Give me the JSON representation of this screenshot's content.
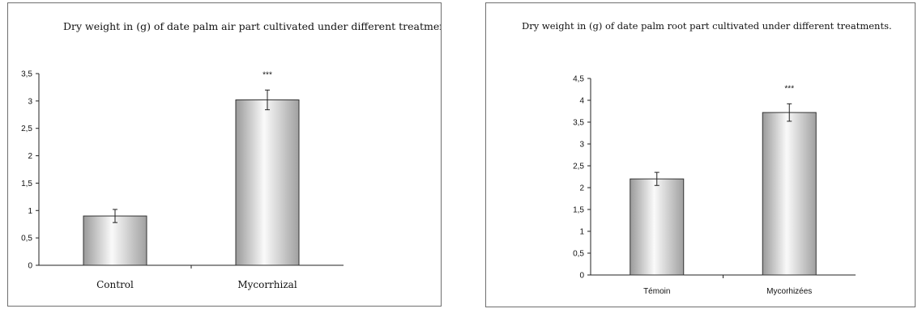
{
  "chart_data": [
    {
      "type": "bar",
      "title": "Dry weight in (g)  of date palm air part  cultivated under different treatments.",
      "categories": [
        "Control",
        "Mycorrhizal"
      ],
      "values": [
        0.9,
        3.02
      ],
      "errors": [
        0.12,
        0.18
      ],
      "significance": [
        "",
        "***"
      ],
      "ylim": [
        0,
        3.5
      ],
      "yticks": [
        "0",
        "0,5",
        "1",
        "1,5",
        "2",
        "2,5",
        "3",
        "3,5"
      ],
      "grid": false,
      "legend": "none"
    },
    {
      "type": "bar",
      "title": "Dry weight in (g) of date palm root part  cultivated under different treatments.",
      "categories": [
        "Témoin",
        "Mycorhizées"
      ],
      "values": [
        2.2,
        3.72
      ],
      "errors": [
        0.15,
        0.2
      ],
      "significance": [
        "",
        "***"
      ],
      "ylim": [
        0,
        4.5
      ],
      "yticks": [
        "0",
        "0,5",
        "1",
        "1,5",
        "2",
        "2,5",
        "3",
        "3,5",
        "4",
        "4,5"
      ],
      "grid": false,
      "legend": "none"
    }
  ],
  "colors": {
    "bar_edge": "#d8d8d8",
    "bar_center": "#fafafa",
    "bar_dark": "#9a9a9a",
    "axis": "#222222",
    "border": "#6f6f6f"
  }
}
